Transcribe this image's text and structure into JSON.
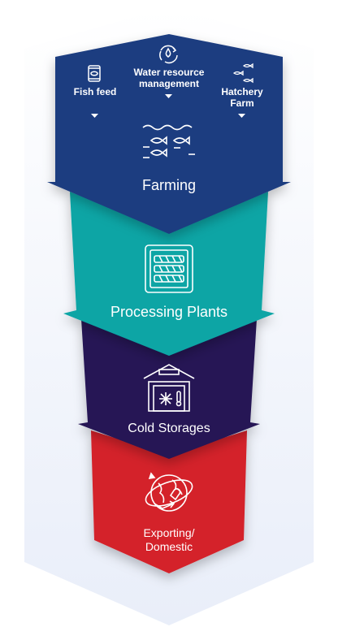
{
  "colors": {
    "background": "#eaeef8",
    "farming": "#1d3d80",
    "processing": "#08a5a5",
    "cold_storage": "#251654",
    "exporting": "#d42029",
    "text": "#ffffff"
  },
  "farming": {
    "title": "Farming",
    "inputs": [
      {
        "label": "Fish feed",
        "icon": "fish-feed-bag-icon"
      },
      {
        "label_line1": "Water resource",
        "label_line2": "management",
        "icon": "water-recycle-icon"
      },
      {
        "label_line1": "Hatchery",
        "label_line2": "Farm",
        "icon": "fish-group-icon"
      }
    ],
    "icon": "fish-in-water-icon"
  },
  "processing": {
    "title": "Processing Plants",
    "icon": "fish-fillet-tray-icon"
  },
  "cold_storage": {
    "title": "Cold Storages",
    "icon": "cold-storage-warehouse-icon"
  },
  "exporting": {
    "title_line1": "Exporting/",
    "title_line2": "Domestic",
    "icon": "globe-export-icon"
  }
}
